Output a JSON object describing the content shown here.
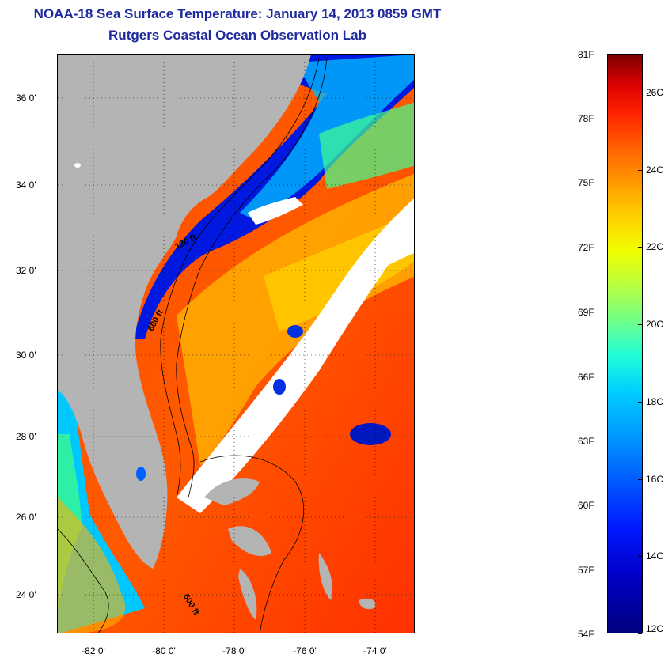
{
  "header": {
    "title": "NOAA-18 Sea Surface Temperature:  January 14, 2013 0859 GMT",
    "subtitle": "Rutgers Coastal Ocean Observation Lab"
  },
  "map": {
    "type": "sea-surface-temperature-map",
    "lon_range": [
      -83,
      -73
    ],
    "lat_range": [
      23,
      37
    ],
    "lat_ticks": [
      "36 0'",
      "34 0'",
      "32 0'",
      "30 0'",
      "28 0'",
      "26 0'",
      "24 0'"
    ],
    "lon_ticks": [
      "-82 0'",
      "-80 0'",
      "-78 0'",
      "-76 0'",
      "-74 0'"
    ],
    "contour_labels": [
      "120 ft",
      "600 ft",
      "600 ft"
    ],
    "colors": {
      "land": "#b4b4b4",
      "cloud": "#ffffff",
      "warm": "#ff3c00",
      "cold": "#0000c8"
    }
  },
  "colorbar": {
    "fahrenheit_labels": [
      "81F",
      "78F",
      "75F",
      "72F",
      "69F",
      "66F",
      "63F",
      "60F",
      "57F",
      "54F"
    ],
    "celsius_labels": [
      "26C",
      "24C",
      "22C",
      "20C",
      "18C",
      "16C",
      "14C",
      "12C"
    ],
    "range_celsius": [
      12,
      27
    ]
  }
}
